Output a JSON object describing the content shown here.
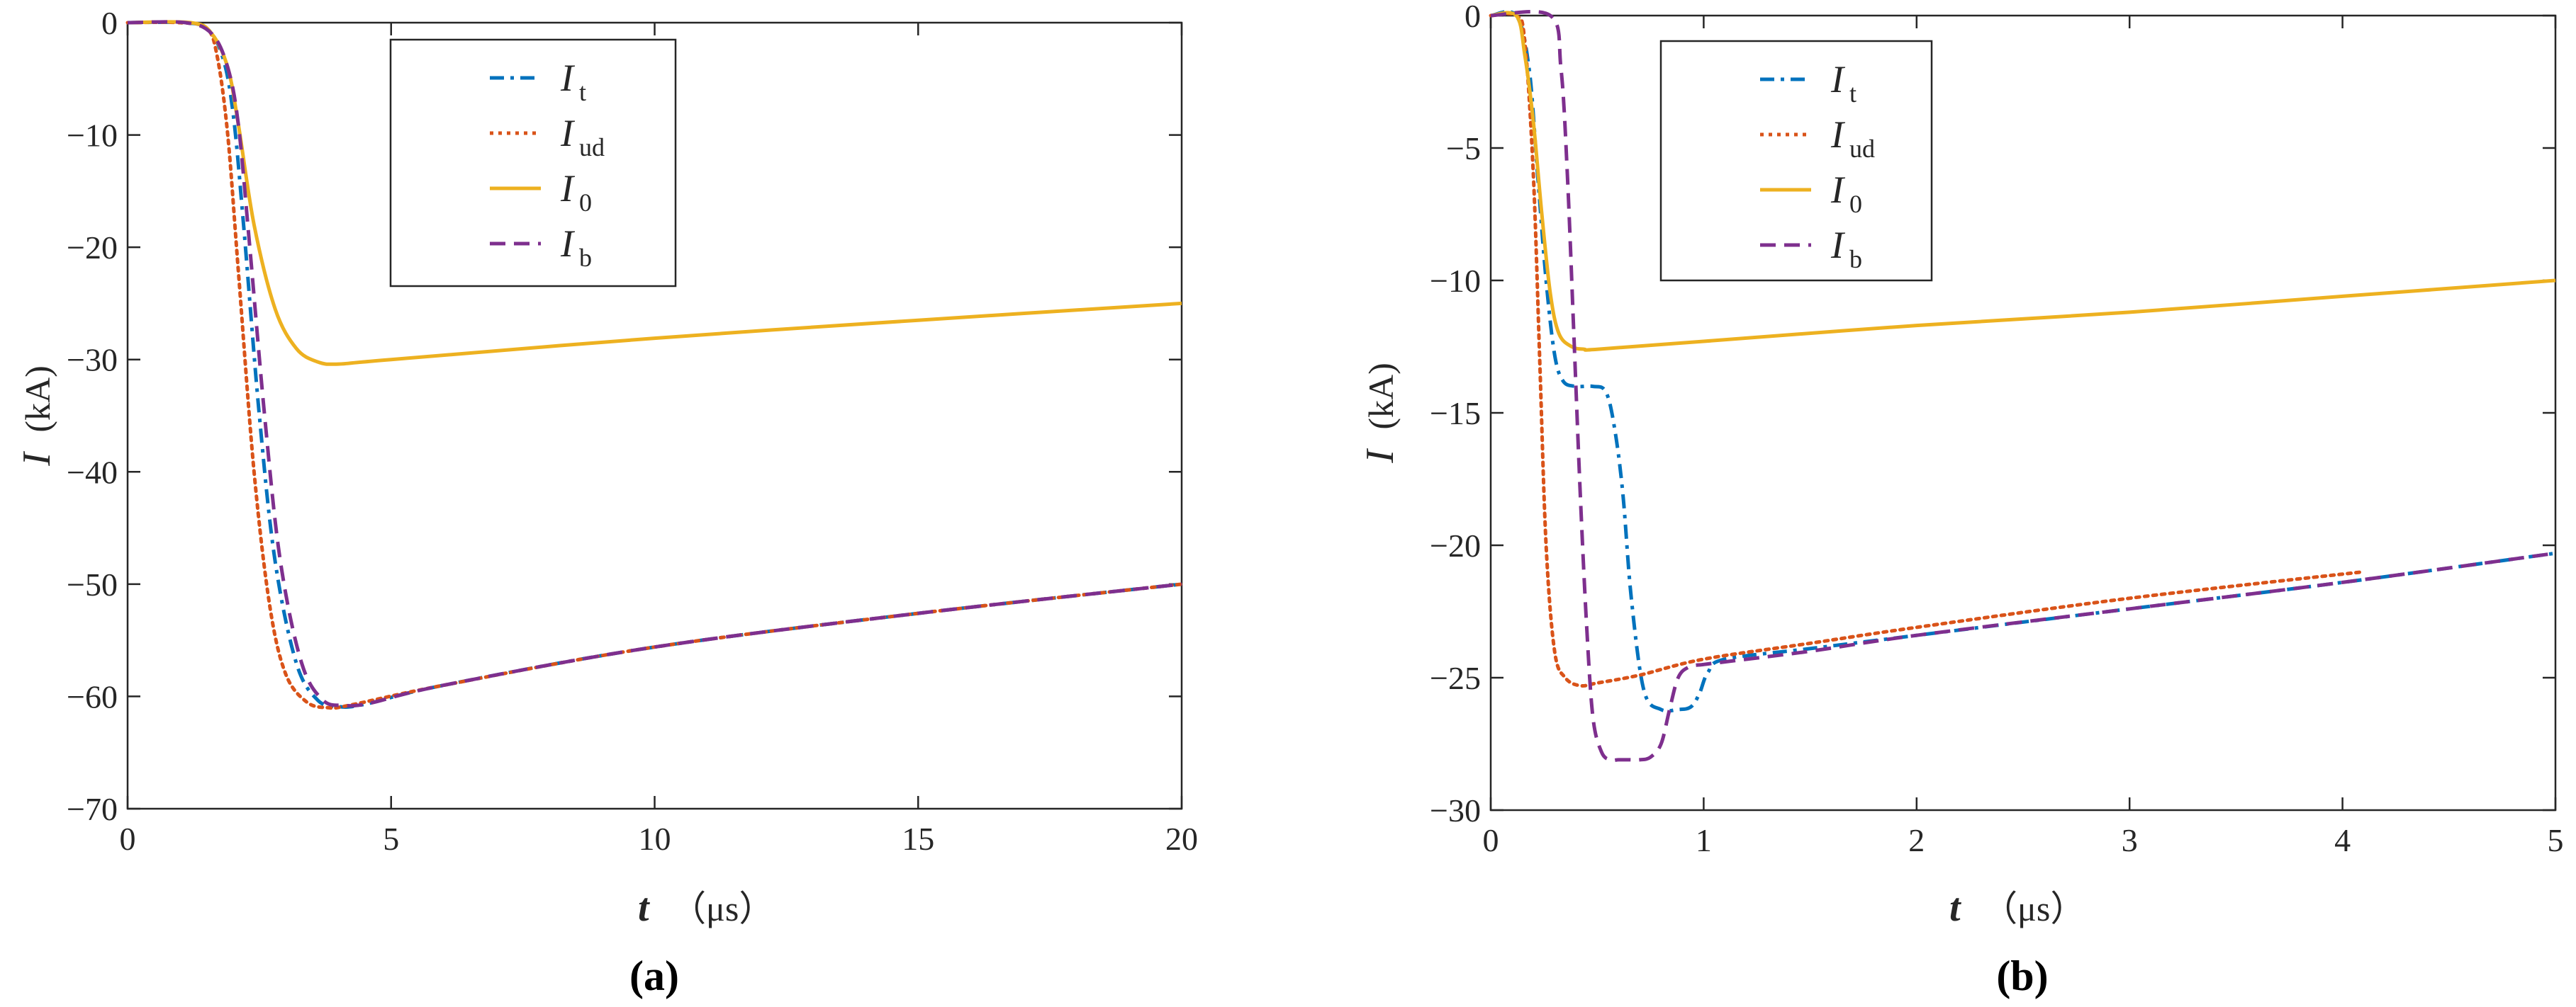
{
  "figure": {
    "panels": [
      {
        "label": "(a)",
        "xlabel": "t",
        "xunit": "（μs）",
        "ylabel": "I",
        "yunit": "(kA)",
        "xticks": [
          "0",
          "5",
          "10",
          "15",
          "20"
        ],
        "yticks": [
          "0",
          "−10",
          "−20",
          "−30",
          "−40",
          "−50",
          "−60",
          "−70"
        ]
      },
      {
        "label": "(b)",
        "xlabel": "t",
        "xunit": "（μs）",
        "ylabel": "I",
        "yunit": "(kA)",
        "xticks": [
          "0",
          "1",
          "2",
          "3",
          "4",
          "5"
        ],
        "yticks": [
          "0",
          "−5",
          "−10",
          "−15",
          "−20",
          "−25",
          "−30"
        ]
      }
    ]
  },
  "chart_data": [
    {
      "type": "line",
      "title": "(a)",
      "xlabel": "t (μs)",
      "ylabel": "I (kA)",
      "xlim": [
        0,
        20
      ],
      "ylim": [
        -70,
        0
      ],
      "grid": false,
      "legend_position": "top-center",
      "series": [
        {
          "name": "I_t",
          "legend_main": "I",
          "legend_sub": "t",
          "color": "#0072BD",
          "dash": "dashdot",
          "x": [
            0,
            1.0,
            1.5,
            1.8,
            2.0,
            2.2,
            2.5,
            2.8,
            3.2,
            3.6,
            4.0,
            4.5,
            6,
            10,
            15,
            20
          ],
          "y": [
            0,
            0,
            -0.5,
            -3,
            -8,
            -18,
            -35,
            -48,
            -57,
            -60.3,
            -60.9,
            -60.7,
            -59.0,
            -55.6,
            -52.6,
            -50.0
          ]
        },
        {
          "name": "I_ud",
          "legend_main": "I",
          "legend_sub": "ud",
          "color": "#D95319",
          "dash": "dotted",
          "x": [
            0,
            1.0,
            1.5,
            1.7,
            1.9,
            2.1,
            2.4,
            2.7,
            3.0,
            3.4,
            3.8,
            4.2,
            6,
            10,
            15,
            20
          ],
          "y": [
            0,
            0,
            -0.5,
            -3,
            -10,
            -22,
            -40,
            -52,
            -58,
            -60.5,
            -61.0,
            -60.8,
            -59.0,
            -55.6,
            -52.6,
            -50.0
          ]
        },
        {
          "name": "I_0",
          "legend_main": "I",
          "legend_sub": "0",
          "color": "#EDB120",
          "dash": "solid",
          "x": [
            0,
            1.2,
            1.6,
            1.9,
            2.1,
            2.4,
            2.8,
            3.2,
            3.6,
            4.0,
            5,
            10,
            15,
            20
          ],
          "y": [
            0,
            0,
            -1,
            -4,
            -9,
            -18,
            -25.5,
            -29,
            -30.2,
            -30.4,
            -30.0,
            -28.1,
            -26.5,
            -25.0
          ]
        },
        {
          "name": "I_b",
          "legend_main": "I",
          "legend_sub": "b",
          "color": "#7E2F8E",
          "dash": "dashed",
          "x": [
            0,
            1.1,
            1.6,
            1.9,
            2.1,
            2.3,
            2.6,
            2.9,
            3.3,
            3.7,
            4.1,
            4.6,
            6,
            10,
            15,
            20
          ],
          "y": [
            0,
            0,
            -1,
            -4,
            -9,
            -19,
            -35,
            -48,
            -57,
            -60.3,
            -60.8,
            -60.6,
            -59.0,
            -55.6,
            -52.6,
            -50.0
          ]
        }
      ]
    },
    {
      "type": "line",
      "title": "(b)",
      "xlabel": "t (μs)",
      "ylabel": "I (kA)",
      "xlim": [
        0,
        5
      ],
      "ylim": [
        -30,
        0
      ],
      "grid": false,
      "legend_position": "top-center",
      "series": [
        {
          "name": "I_t",
          "legend_main": "I",
          "legend_sub": "t",
          "color": "#0072BD",
          "dash": "dashdot",
          "x": [
            0,
            0.12,
            0.18,
            0.22,
            0.26,
            0.3,
            0.34,
            0.4,
            0.48,
            0.54,
            0.58,
            0.62,
            0.66,
            0.72,
            0.8,
            0.88,
            0.94,
            0.98,
            1.02,
            1.1,
            1.5,
            2.0,
            3.0,
            4.0,
            5.0
          ],
          "y": [
            0,
            0,
            -2,
            -6,
            -10,
            -12.8,
            -13.8,
            -14.0,
            -14.0,
            -14.2,
            -15.5,
            -18,
            -22,
            -25.5,
            -26.2,
            -26.2,
            -26.1,
            -25.6,
            -24.8,
            -24.3,
            -23.9,
            -23.4,
            -22.4,
            -21.4,
            -20.3
          ]
        },
        {
          "name": "I_ud",
          "legend_main": "I",
          "legend_sub": "ud",
          "color": "#D95319",
          "dash": "dotted",
          "x": [
            0,
            0.12,
            0.16,
            0.2,
            0.23,
            0.26,
            0.3,
            0.35,
            0.42,
            0.5,
            0.7,
            1.0,
            1.5,
            2.0,
            3.0,
            4.1
          ],
          "y": [
            0,
            0,
            -1,
            -6,
            -13,
            -20,
            -24,
            -25.0,
            -25.3,
            -25.2,
            -24.9,
            -24.3,
            -23.7,
            -23.1,
            -22.0,
            -21.0
          ]
        },
        {
          "name": "I_0",
          "legend_main": "I",
          "legend_sub": "0",
          "color": "#EDB120",
          "dash": "solid",
          "x": [
            0,
            0.12,
            0.16,
            0.2,
            0.24,
            0.28,
            0.32,
            0.38,
            0.44,
            0.5,
            1.0,
            2.0,
            3.0,
            4.0,
            5.0
          ],
          "y": [
            0,
            0,
            -1.5,
            -4,
            -7.5,
            -10.5,
            -12,
            -12.5,
            -12.6,
            -12.6,
            -12.3,
            -11.7,
            -11.2,
            -10.6,
            -10.0
          ]
        },
        {
          "name": "I_b",
          "legend_main": "I",
          "legend_sub": "b",
          "color": "#7E2F8E",
          "dash": "dashed",
          "x": [
            0,
            0.28,
            0.33,
            0.36,
            0.39,
            0.42,
            0.45,
            0.48,
            0.52,
            0.56,
            0.6,
            0.65,
            0.7,
            0.75,
            0.8,
            0.84,
            0.88,
            0.93,
            1.0,
            1.1,
            1.5,
            2.0,
            3.0,
            4.0,
            5.0
          ],
          "y": [
            0,
            0,
            -2,
            -6,
            -12,
            -18,
            -23,
            -26.5,
            -27.8,
            -28.1,
            -28.1,
            -28.1,
            -28.1,
            -28.0,
            -27.5,
            -26.2,
            -25.0,
            -24.6,
            -24.5,
            -24.4,
            -24.0,
            -23.4,
            -22.4,
            -21.4,
            -20.3
          ]
        }
      ]
    }
  ]
}
